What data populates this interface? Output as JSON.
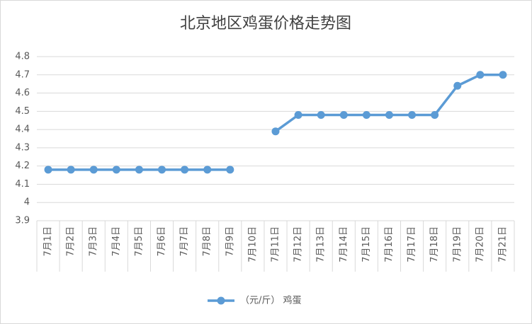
{
  "chart_data": {
    "type": "line",
    "title": "北京地区鸡蛋价格走势图",
    "categories": [
      "7月1日",
      "7月2日",
      "7月3日",
      "7月4日",
      "7月5日",
      "7月6日",
      "7月7日",
      "7月8日",
      "7月9日",
      "7月10日",
      "7月11日",
      "7月12日",
      "7月13日",
      "7月14日",
      "7月15日",
      "7月16日",
      "7月17日",
      "7月18日",
      "7月19日",
      "7月20日",
      "7月21日"
    ],
    "series": [
      {
        "name": "（元/斤） 鸡蛋",
        "color": "#5b9bd5",
        "values": [
          4.18,
          4.18,
          4.18,
          4.18,
          4.18,
          4.18,
          4.18,
          4.18,
          4.18,
          null,
          4.39,
          4.48,
          4.48,
          4.48,
          4.48,
          4.48,
          4.48,
          4.48,
          4.64,
          4.7,
          4.7
        ]
      }
    ],
    "ylim": [
      3.9,
      4.8
    ],
    "yticks": [
      3.9,
      4,
      4.1,
      4.2,
      4.3,
      4.4,
      4.5,
      4.6,
      4.7,
      4.8
    ],
    "grid": true,
    "legend": "bottom"
  }
}
